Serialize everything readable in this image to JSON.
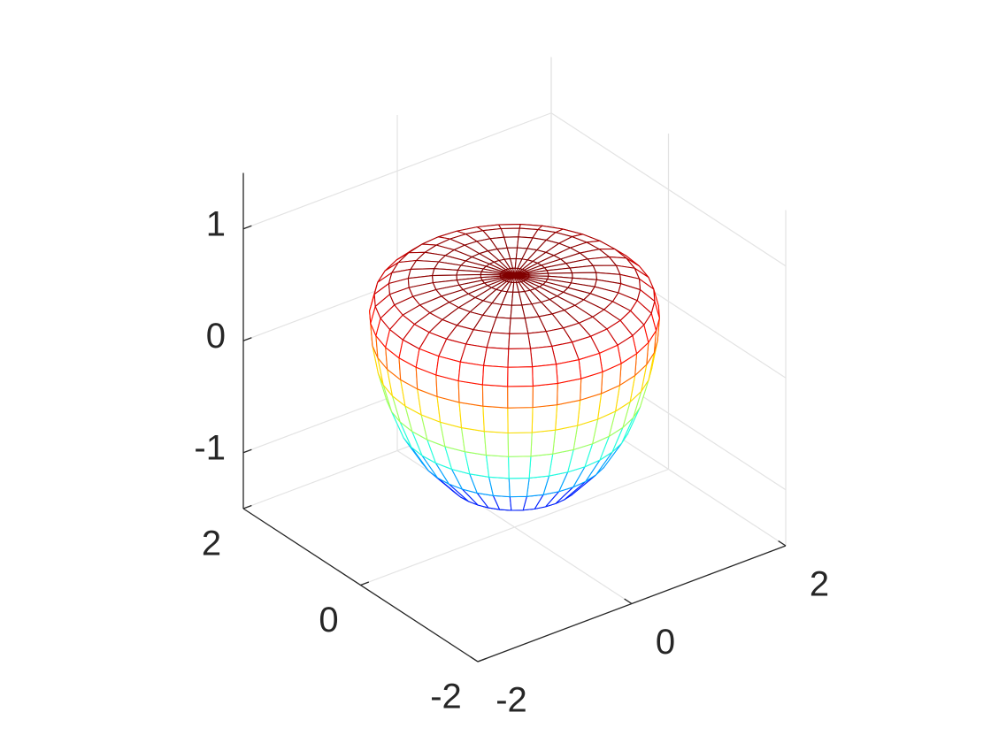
{
  "chart_data": {
    "type": "mesh3d",
    "view": {
      "azimuth": -37.5,
      "elevation": 30
    },
    "colormap": "jet",
    "grid": true,
    "xlim": [
      -2,
      2
    ],
    "ylim": [
      -2,
      2
    ],
    "zlim": [
      -1.5,
      1.5
    ],
    "xticks": [
      -2,
      0,
      2
    ],
    "yticks": [
      -2,
      0,
      2
    ],
    "zticks": [
      -1,
      0,
      1
    ],
    "surface": {
      "theta_deg": [
        0,
        10,
        20,
        30,
        40,
        50,
        60,
        70,
        80,
        90,
        100,
        110,
        120,
        130,
        140,
        150,
        160,
        170,
        180,
        190,
        200,
        210,
        220,
        230,
        240,
        250,
        260,
        270,
        280,
        290,
        300,
        310,
        320,
        330,
        340,
        350
      ],
      "r": [
        0,
        0.35,
        0.7,
        1.0,
        1.2,
        1.33,
        1.42,
        1.48,
        1.5,
        1.45,
        1.3,
        1.1,
        0.85,
        0.6,
        0.35,
        0.15,
        0
      ],
      "z": [
        -1.24,
        -1.2,
        -1.05,
        -0.8,
        -0.55,
        -0.3,
        -0.05,
        0.2,
        0.4,
        0.55,
        0.65,
        0.7,
        0.73,
        0.74,
        0.75,
        0.75,
        0.75
      ]
    }
  }
}
